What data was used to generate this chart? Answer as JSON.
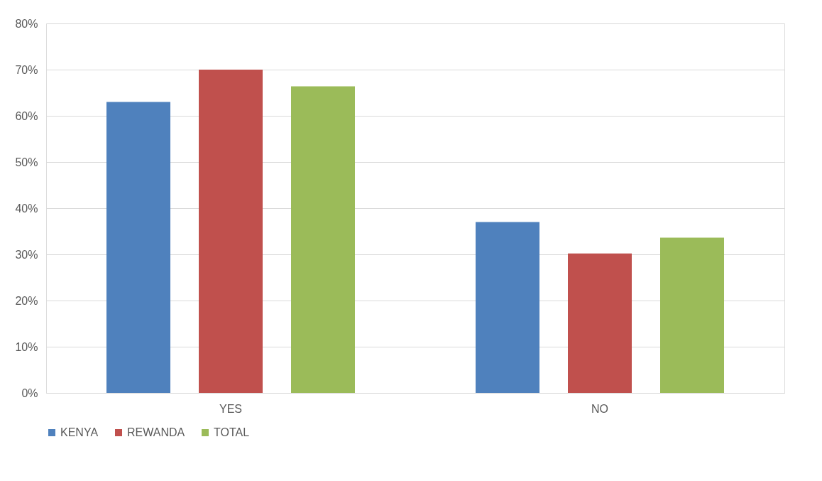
{
  "chart_data": {
    "type": "bar",
    "categories": [
      "YES",
      "NO"
    ],
    "series": [
      {
        "name": "KENYA",
        "color": "#4f81bd",
        "values": [
          63,
          37
        ]
      },
      {
        "name": "REWANDA",
        "color": "#c0504d",
        "values": [
          70,
          30.2
        ]
      },
      {
        "name": "TOTAL",
        "color": "#9bbb59",
        "values": [
          66.4,
          33.6
        ]
      }
    ],
    "ylim": [
      0,
      80
    ],
    "yticks": [
      {
        "value": 0,
        "label": "0%"
      },
      {
        "value": 10,
        "label": "10%"
      },
      {
        "value": 20,
        "label": "20%"
      },
      {
        "value": 30,
        "label": "30%"
      },
      {
        "value": 40,
        "label": "40%"
      },
      {
        "value": 50,
        "label": "50%"
      },
      {
        "value": 60,
        "label": "60%"
      },
      {
        "value": 70,
        "label": "70%"
      },
      {
        "value": 80,
        "label": "80%"
      }
    ],
    "grid": "y",
    "legend": "bottom"
  }
}
